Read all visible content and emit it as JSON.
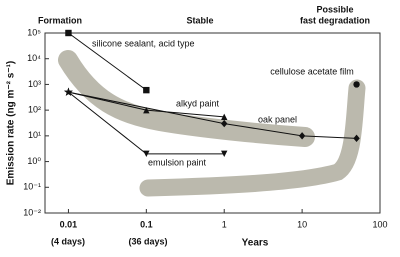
{
  "chart_data": {
    "type": "line",
    "x_label": "Years",
    "y_label": "Emission rate (ng m⁻² s⁻¹)",
    "annotations": [
      "Formation",
      "Stable",
      "Possible",
      "fast degradation",
      "(4 days)",
      "(36 days)"
    ],
    "xscale": "log",
    "yscale": "log",
    "xlim": [
      0.005,
      100
    ],
    "ylim": [
      0.01,
      100000
    ],
    "xticks": [
      0.01,
      0.1,
      1,
      10,
      100
    ],
    "yticks": [
      {
        "value": 0.01,
        "label": "10⁻²"
      },
      {
        "value": 0.1,
        "label": "10⁻¹"
      },
      {
        "value": 1,
        "label": "10⁰"
      },
      {
        "value": 10,
        "label": "10¹"
      },
      {
        "value": 100,
        "label": "10²"
      },
      {
        "value": 1000,
        "label": "10³"
      },
      {
        "value": 10000,
        "label": "10⁴"
      },
      {
        "value": 100000,
        "label": "10⁵"
      }
    ],
    "series": [
      {
        "name": "silicone sealant, acid type",
        "color": "#111111",
        "x": [
          0.01,
          0.1
        ],
        "values": [
          100000,
          600
        ],
        "markers": [
          "square",
          "square"
        ]
      },
      {
        "name": "alkyd paint",
        "color": "#111111",
        "x": [
          0.01,
          0.1,
          1
        ],
        "values": [
          500,
          100,
          55
        ],
        "markers": [
          "star",
          "triangle-up",
          "triangle-up"
        ]
      },
      {
        "name": "oak panel",
        "color": "#111111",
        "x": [
          0.01,
          1,
          10,
          50
        ],
        "values": [
          500,
          30,
          10,
          8
        ],
        "markers": [
          "star",
          "diamond",
          "diamond",
          "diamond"
        ]
      },
      {
        "name": "emulsion paint",
        "color": "#111111",
        "x": [
          0.01,
          0.1,
          1
        ],
        "values": [
          500,
          2,
          2
        ],
        "markers": [
          "star",
          "triangle-down",
          "triangle-down"
        ]
      },
      {
        "name": "cellulose acetate film",
        "color": "#111111",
        "x": [
          50
        ],
        "values": [
          1000
        ],
        "markers": [
          "circle"
        ]
      }
    ]
  }
}
